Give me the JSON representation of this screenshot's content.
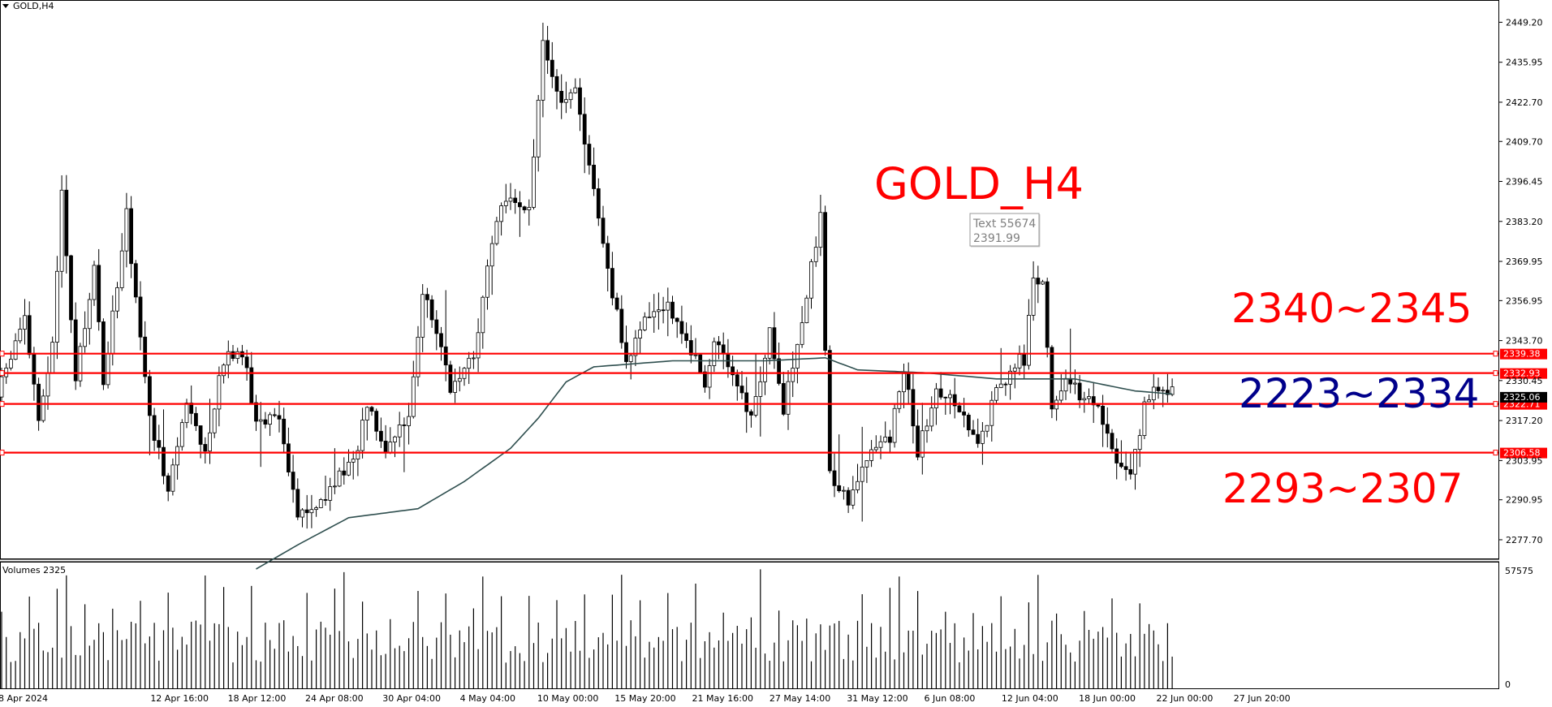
{
  "header": {
    "title": "GOLD,H4"
  },
  "volume_panel": {
    "title": "Volumes 2325"
  },
  "annotations": {
    "chart_label": "GOLD_H4",
    "tooltip_line1": "Text 55674",
    "tooltip_line2": "2391.99",
    "zone_upper": "2340~2345",
    "zone_mid": "2223~2334",
    "zone_lower": "2293~2307"
  },
  "colors": {
    "candle": "#000000",
    "ma_line": "#2f4f4f",
    "level_line": "#ff0000",
    "zone_text_red": "#ff0000",
    "zone_text_blue": "#00008b",
    "current_price_bg": "#000000",
    "level_tag_bg": "#ff0000"
  },
  "chart_data": {
    "type": "candlestick",
    "symbol": "GOLD",
    "timeframe": "H4",
    "y_axis_ticks": [
      "2449.20",
      "2435.95",
      "2422.70",
      "2409.70",
      "2396.45",
      "2383.20",
      "2369.95",
      "2356.95",
      "2343.70",
      "2330.45",
      "2317.20",
      "2303.95",
      "2290.95",
      "2277.70"
    ],
    "ylim": [
      2271.5,
      2455.5
    ],
    "x_axis_ticks": [
      "8 Apr 2024",
      "12 Apr 16:00",
      "18 Apr 12:00",
      "24 Apr 08:00",
      "30 Apr 04:00",
      "4 May 04:00",
      "10 May 00:00",
      "15 May 20:00",
      "21 May 16:00",
      "27 May 14:00",
      "31 May 12:00",
      "6 Jun 08:00",
      "12 Jun 04:00",
      "18 Jun 00:00",
      "22 Jun 00:00",
      "27 Jun 20:00"
    ],
    "horizontal_levels": [
      {
        "value": 2339.38,
        "label": "2339.38"
      },
      {
        "value": 2332.93,
        "label": "2332.93"
      },
      {
        "value": 2322.71,
        "label": "2322.71"
      },
      {
        "value": 2306.58,
        "label": "2306.58"
      }
    ],
    "current_price": {
      "value": 2325.06,
      "label": "2325.06"
    },
    "price_path": [
      [
        0,
        2325
      ],
      [
        6,
        2352
      ],
      [
        9,
        2316
      ],
      [
        12,
        2342
      ],
      [
        14,
        2392
      ],
      [
        17,
        2330
      ],
      [
        21,
        2368
      ],
      [
        23,
        2330
      ],
      [
        28,
        2385
      ],
      [
        33,
        2318
      ],
      [
        37,
        2295
      ],
      [
        41,
        2322
      ],
      [
        45,
        2307
      ],
      [
        49,
        2338
      ],
      [
        53,
        2340
      ],
      [
        56,
        2317
      ],
      [
        61,
        2318
      ],
      [
        65,
        2287
      ],
      [
        70,
        2290
      ],
      [
        74,
        2300
      ],
      [
        77,
        2302
      ],
      [
        80,
        2324
      ],
      [
        84,
        2308
      ],
      [
        89,
        2318
      ],
      [
        92,
        2360
      ],
      [
        95,
        2348
      ],
      [
        98,
        2326
      ],
      [
        103,
        2338
      ],
      [
        108,
        2385
      ],
      [
        112,
        2390
      ],
      [
        115,
        2386
      ],
      [
        118,
        2442
      ],
      [
        121,
        2424
      ],
      [
        125,
        2426
      ],
      [
        129,
        2393
      ],
      [
        133,
        2360
      ],
      [
        136,
        2335
      ],
      [
        140,
        2350
      ],
      [
        145,
        2356
      ],
      [
        149,
        2344
      ],
      [
        153,
        2330
      ],
      [
        155,
        2344
      ],
      [
        159,
        2330
      ],
      [
        163,
        2318
      ],
      [
        167,
        2346
      ],
      [
        170,
        2320
      ],
      [
        175,
        2360
      ],
      [
        178,
        2384
      ],
      [
        180,
        2300
      ],
      [
        184,
        2290
      ],
      [
        188,
        2305
      ],
      [
        193,
        2311
      ],
      [
        196,
        2335
      ],
      [
        199,
        2306
      ],
      [
        203,
        2328
      ],
      [
        207,
        2324
      ],
      [
        212,
        2310
      ],
      [
        216,
        2326
      ],
      [
        219,
        2334
      ],
      [
        222,
        2338
      ],
      [
        224,
        2362
      ],
      [
        226,
        2364
      ],
      [
        228,
        2322
      ],
      [
        231,
        2330
      ],
      [
        236,
        2324
      ],
      [
        240,
        2315
      ],
      [
        242,
        2302
      ],
      [
        245,
        2297
      ],
      [
        248,
        2322
      ],
      [
        251,
        2328
      ],
      [
        253,
        2326
      ]
    ],
    "ma_path": [
      [
        55,
        2268
      ],
      [
        64,
        2276
      ],
      [
        75,
        2285
      ],
      [
        90,
        2288
      ],
      [
        100,
        2297
      ],
      [
        110,
        2308
      ],
      [
        116,
        2318
      ],
      [
        122,
        2330
      ],
      [
        128,
        2335
      ],
      [
        145,
        2337
      ],
      [
        165,
        2337
      ],
      [
        178,
        2338
      ],
      [
        185,
        2334
      ],
      [
        200,
        2333
      ],
      [
        215,
        2331
      ],
      [
        232,
        2331
      ],
      [
        245,
        2327
      ],
      [
        253,
        2326
      ]
    ],
    "volume": {
      "label": "Volumes",
      "last_value": 2325,
      "ylim": [
        0,
        57575
      ],
      "ticks": [
        "57575",
        "0"
      ]
    },
    "grid": false,
    "legend": "none"
  }
}
